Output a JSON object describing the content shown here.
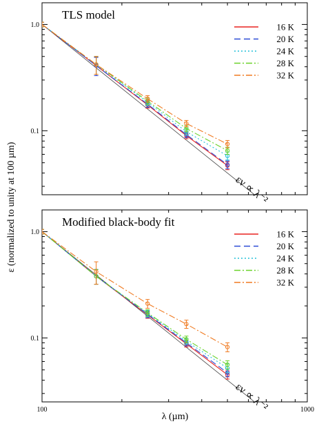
{
  "figure": {
    "xlabel": "λ (µm)",
    "ylabel": "ε (normalized to unity at 100 µm)",
    "annotation": "εν ∝ λ⁻²"
  },
  "chart_data": [
    {
      "type": "line",
      "title": "TLS model",
      "xscale": "log",
      "yscale": "log",
      "xlim": [
        100,
        1000
      ],
      "ylim": [
        0.025,
        1.6
      ],
      "x_tick_labels": [
        "100",
        "1000"
      ],
      "y_tick_labels": [
        "1.0",
        "0.1"
      ],
      "legend_position": "top-right",
      "reference_line": {
        "label": "εν ∝ λ⁻²",
        "slope": -2,
        "anchor": [
          100,
          1.0
        ]
      },
      "x": [
        100,
        160,
        250,
        350,
        500
      ],
      "series": [
        {
          "name": "16 K",
          "color": "#e8211e",
          "dash": "solid",
          "values": [
            1.0,
            0.41,
            0.175,
            0.09,
            0.047
          ],
          "err": [
            0.05,
            0.08,
            0.012,
            0.006,
            0.004
          ]
        },
        {
          "name": "20 K",
          "color": "#2b4ad6",
          "dash": "dash",
          "values": [
            1.0,
            0.41,
            0.178,
            0.092,
            0.048
          ],
          "err": [
            0.05,
            0.08,
            0.012,
            0.006,
            0.004
          ]
        },
        {
          "name": "24 K",
          "color": "#20c0d8",
          "dash": "dot",
          "values": [
            1.0,
            0.42,
            0.185,
            0.098,
            0.058
          ],
          "err": [
            0.05,
            0.08,
            0.013,
            0.007,
            0.005
          ]
        },
        {
          "name": "28 K",
          "color": "#6ad22a",
          "dash": "dashdot",
          "values": [
            1.0,
            0.42,
            0.19,
            0.105,
            0.065
          ],
          "err": [
            0.05,
            0.08,
            0.013,
            0.007,
            0.005
          ]
        },
        {
          "name": "32 K",
          "color": "#f07a20",
          "dash": "dashdot",
          "values": [
            1.0,
            0.42,
            0.2,
            0.117,
            0.075
          ],
          "err": [
            0.05,
            0.08,
            0.014,
            0.008,
            0.006
          ]
        }
      ]
    },
    {
      "type": "line",
      "title": "Modified black-body fit",
      "xscale": "log",
      "yscale": "log",
      "xlim": [
        100,
        1000
      ],
      "ylim": [
        0.025,
        1.6
      ],
      "x_tick_labels": [
        "100",
        "1000"
      ],
      "y_tick_labels": [
        "1.0",
        "0.1"
      ],
      "legend_position": "top-right",
      "reference_line": {
        "label": "εν ∝ λ⁻²",
        "slope": -2,
        "anchor": [
          100,
          1.0
        ]
      },
      "x": [
        100,
        160,
        250,
        350,
        500
      ],
      "series": [
        {
          "name": "16 K",
          "color": "#e8211e",
          "dash": "solid",
          "values": [
            1.0,
            0.38,
            0.165,
            0.088,
            0.045
          ],
          "err": [
            0.05,
            0.06,
            0.012,
            0.006,
            0.004
          ]
        },
        {
          "name": "20 K",
          "color": "#2b4ad6",
          "dash": "dash",
          "values": [
            1.0,
            0.38,
            0.167,
            0.09,
            0.047
          ],
          "err": [
            0.05,
            0.06,
            0.012,
            0.006,
            0.004
          ]
        },
        {
          "name": "24 K",
          "color": "#20c0d8",
          "dash": "dot",
          "values": [
            1.0,
            0.38,
            0.17,
            0.093,
            0.052
          ],
          "err": [
            0.05,
            0.06,
            0.012,
            0.006,
            0.005
          ]
        },
        {
          "name": "28 K",
          "color": "#6ad22a",
          "dash": "dashdot",
          "values": [
            1.0,
            0.38,
            0.172,
            0.097,
            0.056
          ],
          "err": [
            0.05,
            0.06,
            0.012,
            0.007,
            0.005
          ]
        },
        {
          "name": "32 K",
          "color": "#f07a20",
          "dash": "dashdot",
          "values": [
            1.0,
            0.42,
            0.21,
            0.135,
            0.082
          ],
          "err": [
            0.05,
            0.1,
            0.02,
            0.012,
            0.008
          ]
        }
      ]
    }
  ]
}
